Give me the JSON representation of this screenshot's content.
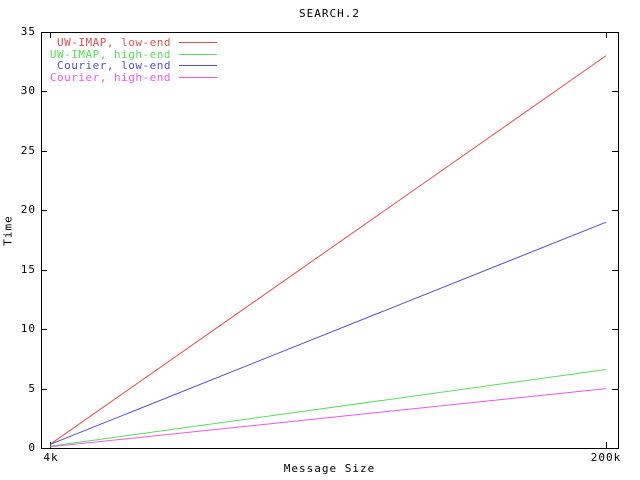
{
  "chart_data": {
    "type": "line",
    "title": "SEARCH.2",
    "xlabel": "Message Size",
    "ylabel": "Time",
    "x": [
      4,
      200
    ],
    "xtick_labels": [
      "4k",
      "200k"
    ],
    "ylim": [
      0,
      35
    ],
    "yticks": [
      0,
      5,
      10,
      15,
      20,
      25,
      30,
      35
    ],
    "grid": false,
    "legend_position": "top-left",
    "axis_color": "#000000",
    "background_color": "#ffffff",
    "series": [
      {
        "name": "UW-IMAP, low-end",
        "color": "#e05050",
        "values": [
          0.3,
          33.0
        ]
      },
      {
        "name": "UW-IMAP, high-end",
        "color": "#55e055",
        "values": [
          0.15,
          6.6
        ]
      },
      {
        "name": "Courier, low-end",
        "color": "#5050d0",
        "values": [
          0.3,
          19.0
        ]
      },
      {
        "name": "Courier, high-end",
        "color": "#f055f0",
        "values": [
          0.1,
          5.0
        ]
      }
    ]
  }
}
